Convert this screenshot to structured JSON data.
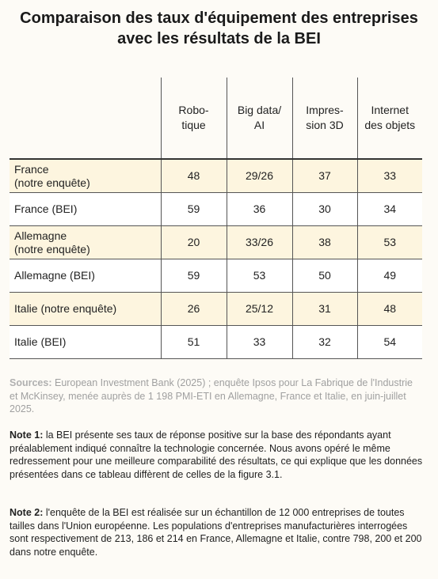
{
  "header": {
    "title": "Comparaison des taux d'équipement des entreprises avec les résultats de la BEI"
  },
  "table": {
    "columns": [
      "Robo-\ntique",
      "Big data/\nAI",
      "Impres-\nsion 3D",
      "Internet\ndes objets"
    ],
    "rows": [
      [
        "France\n(notre enquête)",
        48,
        "29/26",
        37,
        33
      ],
      [
        "France (BEI)",
        59,
        36,
        30,
        34
      ],
      [
        "Allemagne\n(notre enquête)",
        20,
        "33/26",
        38,
        53
      ],
      [
        "Allemagne (BEI)",
        59,
        53,
        50,
        49
      ],
      [
        "Italie (notre enquête)",
        26,
        "25/12",
        31,
        48
      ],
      [
        "Italie (BEI)",
        51,
        33,
        32,
        54
      ]
    ]
  },
  "sources": {
    "label": "Sources:",
    "text": "European Investment Bank (2025) ; enquête Ipsos pour La Fabrique de l'Industrie et McKinsey, menée auprès de 1 198 PMI-ETI en Allemagne, France et Italie, en juin-juillet 2025."
  },
  "notes": [
    {
      "label": "Note 1:",
      "text": "la BEI présente ses taux de réponse positive sur la base des répondants ayant préalablement indiqué connaître la technologie concernée. Nous avons opéré le même redressement pour une meilleure comparabilité des résultats, ce qui explique que les données présentées dans ce tableau diffèrent de celles de la figure 3.1."
    },
    {
      "label": "Note 2:",
      "text": "l'enquête de la BEI est réalisée sur un échantillon de 12 000 entreprises de toutes tailles dans l'Union européenne. Les populations d'entreprises manufacturières interrogées sont respectivement de 213, 186 et 214 en France, Allemagne et Italie, contre 798, 200 et 200 dans notre enquête."
    }
  ]
}
